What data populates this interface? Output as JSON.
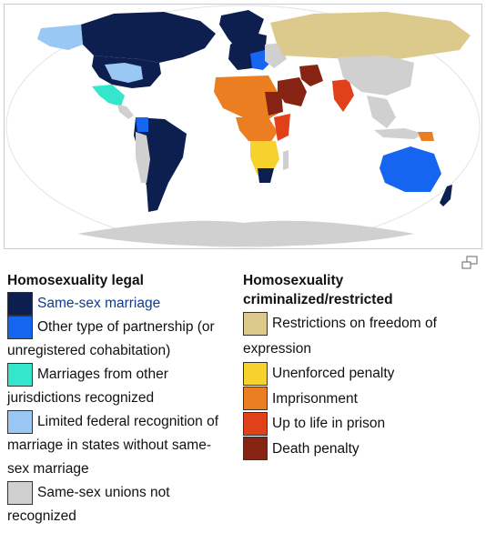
{
  "colors": {
    "same_sex_marriage": "#0d1f4f",
    "other_partnership": "#1565f0",
    "marriages_other_jurisdictions": "#33e6cc",
    "limited_federal": "#99c8f5",
    "not_recognized": "#d0d0d0",
    "restrictions_expression": "#dcc98c",
    "unenforced_penalty": "#f8d22c",
    "imprisonment": "#ec7e22",
    "life_in_prison": "#e0401a",
    "death_penalty": "#862312",
    "ocean": "#ffffff",
    "land_outline": "#f0f0f0"
  },
  "icons": {
    "magnify": "magnify-icon"
  },
  "legend": {
    "legal": {
      "heading": "Homosexuality legal",
      "items": [
        {
          "key": "same_sex_marriage",
          "label": "Same-sex marriage",
          "is_link": true
        },
        {
          "key": "other_partnership",
          "label": "Other type of partnership (or unregistered cohabitation)"
        },
        {
          "key": "marriages_other_jurisdictions",
          "label": "Marriages from other jurisdictions recognized"
        },
        {
          "key": "limited_federal",
          "label": "Limited federal recognition of marriage in states without same-sex marriage"
        },
        {
          "key": "not_recognized",
          "label": "Same-sex unions not recognized"
        }
      ]
    },
    "criminalized": {
      "heading": "Homosexuality criminalized/restricted",
      "items": [
        {
          "key": "restrictions_expression",
          "label": "Restrictions on freedom of expression"
        },
        {
          "key": "unenforced_penalty",
          "label": "Unenforced penalty"
        },
        {
          "key": "imprisonment",
          "label": "Imprisonment"
        },
        {
          "key": "life_in_prison",
          "label": "Up to life in prison"
        },
        {
          "key": "death_penalty",
          "label": "Death penalty"
        }
      ]
    }
  }
}
